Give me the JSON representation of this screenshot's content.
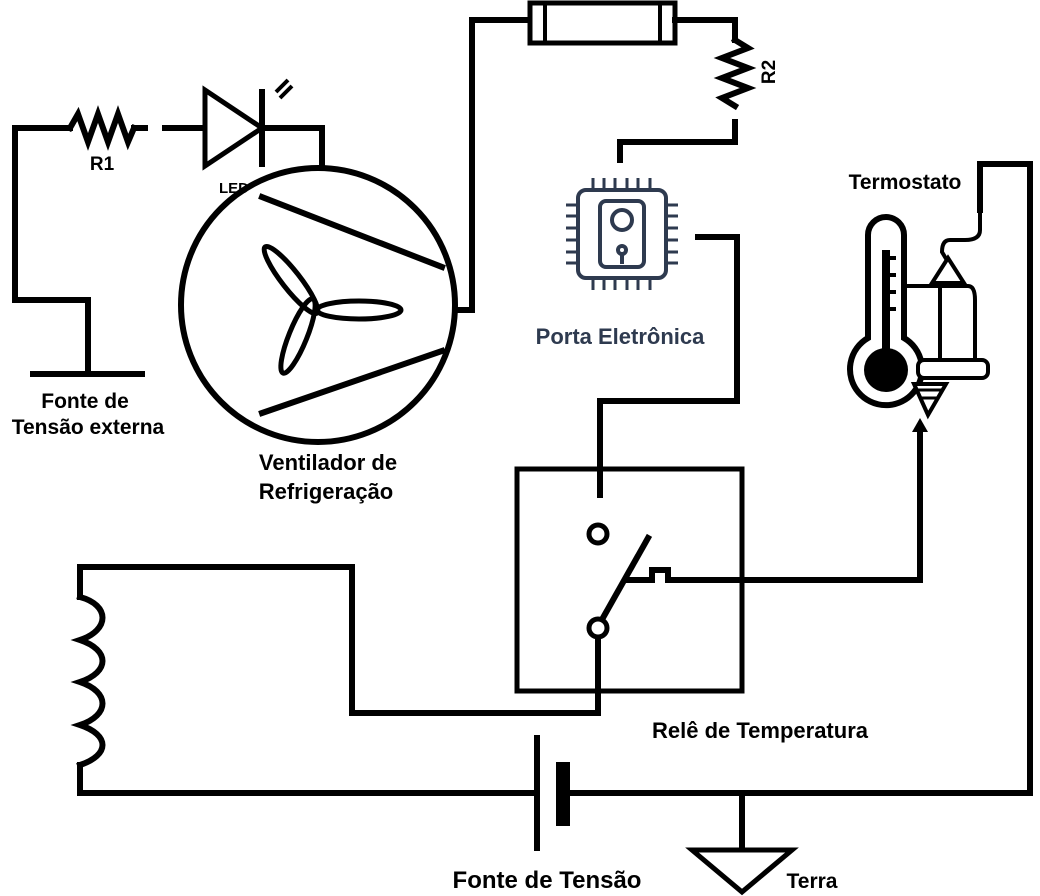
{
  "labels": {
    "r1": "R1",
    "r2": "R2",
    "led": "LED",
    "external_source_line1": "Fonte de",
    "external_source_line2": "Tensão externa",
    "fan_line1": "Ventilador de",
    "fan_line2": "Refrigeração",
    "electronic_gate": "Porta Eletrônica",
    "thermostat": "Termostato",
    "relay": "Relê de Temperatura",
    "voltage_source": "Fonte de Tensão",
    "ground": "Terra"
  },
  "colors": {
    "line": "#000000",
    "gate_icon": "#2e3a4f",
    "background": "#ffffff"
  },
  "icons": [
    "resistor-icon",
    "led-icon",
    "fan-icon",
    "fuse-icon",
    "chip-icon",
    "thermometer-icon",
    "switch-icon",
    "inductor-icon",
    "battery-icon",
    "ground-icon"
  ]
}
